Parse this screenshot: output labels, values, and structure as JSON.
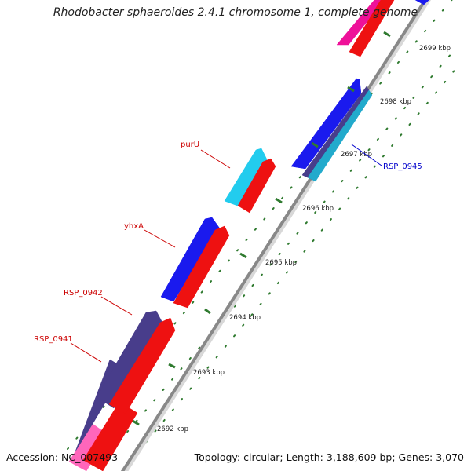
{
  "title": "Rhodobacter sphaeroides 2.4.1 chromosome 1, complete genome",
  "footer": {
    "accession": "Accession: NC_007493",
    "summary": "Topology: circular; Length: 3,188,609 bp; Genes: 3,070"
  },
  "ticks": [
    "2692 kbp",
    "2693 kbp",
    "2694 kbp",
    "2695 kbp",
    "2696 kbp",
    "2697 kbp",
    "2698 kbp",
    "2699 kbp"
  ],
  "labels": [
    "purU",
    "yhxA",
    "RSP_0942",
    "RSP_0941",
    "RSP_0945"
  ],
  "colors": {
    "forward": "#1a1aee",
    "reverse": "#ee1111",
    "dark": "#483d8b",
    "cyan": "#22ccee",
    "teal": "#22aacc",
    "magenta": "#ee1199",
    "pink": "#ff66bb",
    "backbone": "#888888",
    "tick": "#228822",
    "label_red": "#cc0000",
    "label_blue": "#0000cc"
  }
}
